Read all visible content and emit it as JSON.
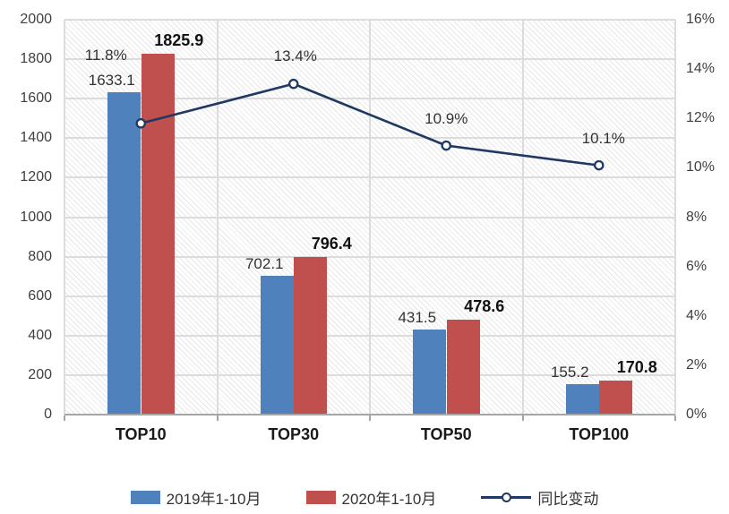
{
  "chart_data": {
    "type": "bar",
    "subtype": "combo-bar-line",
    "title": "",
    "categories": [
      "TOP10",
      "TOP30",
      "TOP50",
      "TOP100"
    ],
    "series": [
      {
        "name": "2019年1-10月",
        "chart": "bar",
        "axis": "left",
        "color": "#4F81BD",
        "values": [
          1633.1,
          702.1,
          431.5,
          155.2
        ],
        "value_labels": [
          "1633.1",
          "702.1",
          "431.5",
          "155.2"
        ]
      },
      {
        "name": "2020年1-10月",
        "chart": "bar",
        "axis": "left",
        "color": "#C0504D",
        "values": [
          1825.9,
          796.4,
          478.6,
          170.8
        ],
        "value_labels": [
          "1825.9",
          "796.4",
          "478.6",
          "170.8"
        ]
      },
      {
        "name": "同比变动",
        "chart": "line",
        "axis": "right",
        "color": "#1F3864",
        "values": [
          11.8,
          13.4,
          10.9,
          10.1
        ],
        "value_labels": [
          "11.8%",
          "13.4%",
          "10.9%",
          "10.1%"
        ]
      }
    ],
    "left_axis": {
      "min": 0,
      "max": 2000,
      "step": 200,
      "tick_labels": [
        "2000",
        "1800",
        "1600",
        "1400",
        "1200",
        "1000",
        "800",
        "600",
        "400",
        "200",
        "0"
      ]
    },
    "right_axis": {
      "min": 0,
      "max": 16,
      "step": 2,
      "tick_labels": [
        "16%",
        "14%",
        "12%",
        "10%",
        "8%",
        "6%",
        "4%",
        "2%",
        "0%"
      ]
    },
    "grid": true,
    "legend_position": "bottom",
    "colors": {
      "bar_blue": "#4F81BD",
      "bar_red": "#C0504D",
      "line_navy": "#1F3864",
      "gridline": "#dcdcdc",
      "axis_line": "#a6a6a6",
      "axis_text": "#404040"
    }
  }
}
